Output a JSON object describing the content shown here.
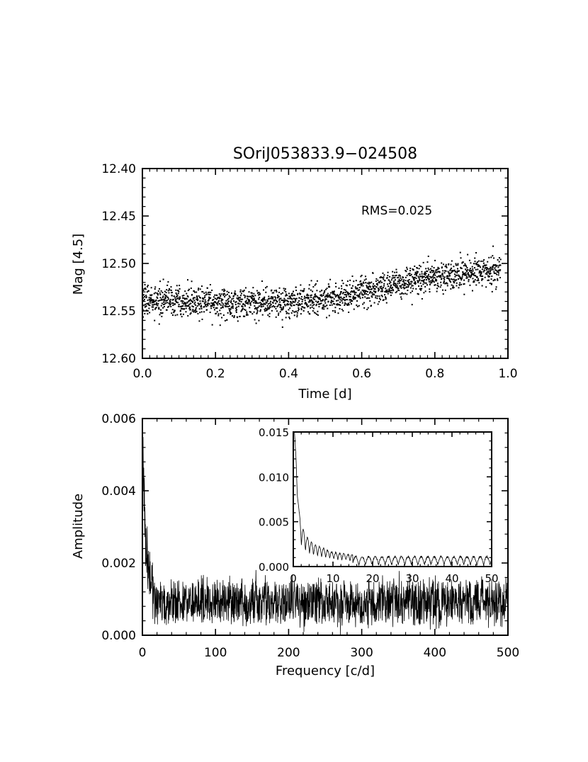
{
  "chart_data": [
    {
      "id": "lightcurve",
      "type": "scatter",
      "title": "SOriJ053833.9−024508",
      "xlabel": "Time [d]",
      "ylabel": "Mag [4.5]",
      "xlim": [
        0.0,
        1.0
      ],
      "ylim": [
        12.6,
        12.4
      ],
      "y_inverted": true,
      "x_ticks": [
        "0.0",
        "0.2",
        "0.4",
        "0.6",
        "0.8",
        "1.0"
      ],
      "y_ticks": [
        "12.40",
        "12.45",
        "12.50",
        "12.55",
        "12.60"
      ],
      "annotation": "RMS=0.025",
      "trend": {
        "x": [
          0.0,
          0.1,
          0.2,
          0.3,
          0.4,
          0.5,
          0.6,
          0.7,
          0.8,
          0.9,
          0.98
        ],
        "y": [
          12.538,
          12.54,
          12.54,
          12.543,
          12.542,
          12.537,
          12.53,
          12.522,
          12.514,
          12.51,
          12.507
        ]
      },
      "n_points": 2000,
      "scatter_sigma": 0.008,
      "grid": false
    },
    {
      "id": "periodogram",
      "type": "line",
      "xlabel": "Frequency [c/d]",
      "ylabel": "Amplitude",
      "xlim": [
        0,
        500
      ],
      "ylim": [
        0.0,
        0.006
      ],
      "x_ticks": [
        "0",
        "100",
        "200",
        "300",
        "400",
        "500"
      ],
      "y_ticks": [
        "0.000",
        "0.002",
        "0.004",
        "0.006"
      ],
      "noise_level": 0.0009,
      "peak": {
        "x": [
          0,
          1,
          2,
          4,
          6,
          10,
          15
        ],
        "y": [
          0.0058,
          0.0048,
          0.004,
          0.0028,
          0.0022,
          0.0016,
          0.0012
        ]
      },
      "grid": false,
      "inset": {
        "type": "line",
        "xlim": [
          0,
          50
        ],
        "ylim": [
          0.0,
          0.015
        ],
        "x_ticks": [
          "0",
          "10",
          "20",
          "30",
          "40",
          "50"
        ],
        "y_ticks": [
          "0.000",
          "0.005",
          "0.010",
          "0.015"
        ],
        "peak": {
          "x": [
            0.3,
            0.7,
            1.0,
            1.5,
            2.0,
            3.0,
            5.0,
            10.0,
            20.0,
            50.0
          ],
          "y": [
            0.015,
            0.012,
            0.008,
            0.006,
            0.0048,
            0.0035,
            0.0025,
            0.0016,
            0.001,
            0.0008
          ]
        }
      }
    }
  ]
}
